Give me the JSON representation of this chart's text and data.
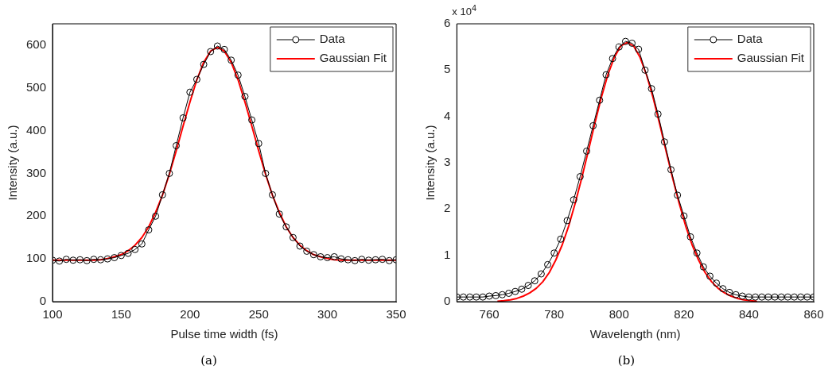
{
  "chart_data": [
    {
      "type": "line",
      "xlabel": "Pulse time width (fs)",
      "ylabel": "Intensity (a.u.)",
      "annotations": [
        "(a)"
      ],
      "xlim": [
        100,
        350
      ],
      "xticks": [
        100,
        150,
        200,
        250,
        300,
        350
      ],
      "ylim": [
        0,
        650
      ],
      "yticks": [
        0,
        100,
        200,
        300,
        400,
        500,
        600
      ],
      "grid": false,
      "legend": "top right",
      "series": [
        {
          "name": "Data",
          "color": "#000000",
          "marker": "circle",
          "x": [
            100,
            105,
            110,
            115,
            120,
            125,
            130,
            135,
            140,
            145,
            150,
            155,
            160,
            165,
            170,
            175,
            180,
            185,
            190,
            195,
            200,
            205,
            210,
            215,
            220,
            225,
            230,
            235,
            240,
            245,
            250,
            255,
            260,
            265,
            270,
            275,
            280,
            285,
            290,
            295,
            300,
            305,
            310,
            315,
            320,
            325,
            330,
            335,
            340,
            345,
            350
          ],
          "values": [
            97,
            95,
            99,
            97,
            98,
            96,
            99,
            98,
            100,
            103,
            108,
            113,
            122,
            135,
            168,
            200,
            250,
            300,
            365,
            430,
            490,
            520,
            555,
            585,
            598,
            590,
            565,
            530,
            480,
            425,
            370,
            300,
            250,
            205,
            175,
            150,
            130,
            118,
            110,
            105,
            103,
            105,
            100,
            98,
            96,
            99,
            97,
            98,
            99,
            96,
            98
          ]
        },
        {
          "name": "Gaussian Fit",
          "color": "#ff0000",
          "marker": "none",
          "x": [
            100,
            110,
            120,
            130,
            135,
            140,
            145,
            150,
            155,
            160,
            165,
            170,
            175,
            180,
            185,
            190,
            195,
            200,
            205,
            210,
            215,
            220,
            225,
            230,
            235,
            240,
            245,
            250,
            255,
            260,
            265,
            270,
            275,
            280,
            285,
            290,
            295,
            300,
            305,
            310,
            320,
            330,
            340,
            350
          ],
          "values": [
            97,
            97,
            97,
            97,
            98,
            101,
            105,
            110,
            119,
            132,
            150,
            175,
            209,
            249,
            298,
            353,
            411,
            467,
            519,
            560,
            586,
            595,
            586,
            560,
            519,
            467,
            411,
            353,
            298,
            249,
            209,
            175,
            150,
            132,
            119,
            110,
            105,
            101,
            98,
            97,
            97,
            97,
            97,
            97
          ]
        }
      ]
    },
    {
      "type": "line",
      "xlabel": "Wavelength (nm)",
      "ylabel": "Intensity (a.u.)",
      "annotations": [
        "x 10$^{4}$",
        "(b)"
      ],
      "xlim": [
        750,
        860
      ],
      "xticks": [
        760,
        780,
        800,
        820,
        840,
        860
      ],
      "ylim": [
        0,
        6
      ],
      "yticks": [
        0,
        1,
        2,
        3,
        4,
        5,
        6
      ],
      "grid": false,
      "legend": "top right",
      "series": [
        {
          "name": "Data",
          "color": "#000000",
          "marker": "circle",
          "x": [
            750,
            752,
            754,
            756,
            758,
            760,
            762,
            764,
            766,
            768,
            770,
            772,
            774,
            776,
            778,
            780,
            782,
            784,
            786,
            788,
            790,
            792,
            794,
            796,
            798,
            800,
            802,
            804,
            806,
            808,
            810,
            812,
            814,
            816,
            818,
            820,
            822,
            824,
            826,
            828,
            830,
            832,
            834,
            836,
            838,
            840,
            842,
            844,
            846,
            848,
            850,
            852,
            854,
            856,
            858,
            860
          ],
          "values": [
            0.1,
            0.1,
            0.1,
            0.1,
            0.1,
            0.12,
            0.13,
            0.15,
            0.18,
            0.22,
            0.27,
            0.35,
            0.45,
            0.6,
            0.8,
            1.05,
            1.35,
            1.75,
            2.2,
            2.7,
            3.25,
            3.8,
            4.35,
            4.9,
            5.25,
            5.5,
            5.62,
            5.58,
            5.45,
            5.0,
            4.6,
            4.05,
            3.45,
            2.85,
            2.3,
            1.85,
            1.4,
            1.05,
            0.75,
            0.55,
            0.4,
            0.28,
            0.2,
            0.15,
            0.12,
            0.1,
            0.1,
            0.1,
            0.1,
            0.1,
            0.1,
            0.1,
            0.1,
            0.1,
            0.1,
            0.1
          ]
        },
        {
          "name": "Gaussian Fit",
          "color": "#ff0000",
          "marker": "none",
          "x": [
            762.5,
            764.5,
            766.5,
            768.5,
            770.5,
            772.5,
            774.5,
            776.5,
            778.5,
            780.5,
            782.5,
            784.5,
            786.5,
            788.5,
            790.5,
            792.5,
            794.5,
            796.5,
            798.5,
            800.5,
            802.5,
            804.5,
            806.5,
            808.5,
            810.5,
            812.5,
            814.5,
            816.5,
            818.5,
            820.5,
            822.5,
            824.5,
            826.5,
            828.5,
            830.5,
            832.5,
            834.5,
            836.5,
            838.5,
            840.5,
            842.5
          ],
          "values": [
            0.01,
            0.02,
            0.04,
            0.07,
            0.12,
            0.19,
            0.29,
            0.43,
            0.63,
            0.9,
            1.23,
            1.64,
            2.13,
            2.67,
            3.25,
            3.84,
            4.4,
            4.89,
            5.27,
            5.52,
            5.6,
            5.52,
            5.27,
            4.89,
            4.4,
            3.84,
            3.25,
            2.67,
            2.13,
            1.64,
            1.23,
            0.9,
            0.63,
            0.43,
            0.29,
            0.19,
            0.12,
            0.07,
            0.04,
            0.02,
            0.01
          ]
        }
      ]
    }
  ]
}
